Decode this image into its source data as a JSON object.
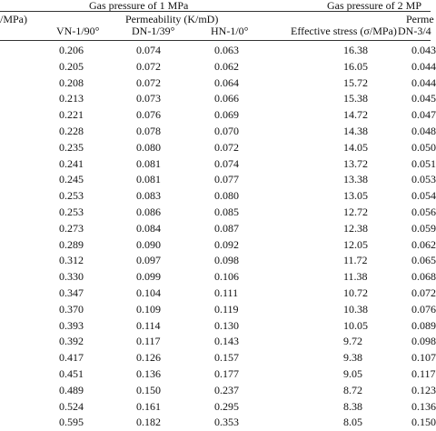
{
  "header": {
    "group1_title": "Gas pressure of 1 MPa",
    "group2_title": "Gas pressure of 2 MP",
    "left_partial_label": "/MPa)",
    "permeability_label": "Permeability (K/mD)",
    "permeability_label_right": "Perme",
    "col_vn": "VN-1/90°",
    "col_dn": "DN-1/39°",
    "col_hn": "HN-1/0°",
    "col_stress": "Effective stress (σ/MPa)",
    "col_dn2": "DN-3/4"
  },
  "rows": [
    {
      "vn": "0.206",
      "dn": "0.074",
      "hn": "0.063",
      "es": "16.38",
      "dn2": "0.043"
    },
    {
      "vn": "0.205",
      "dn": "0.072",
      "hn": "0.062",
      "es": "16.05",
      "dn2": "0.044"
    },
    {
      "vn": "0.208",
      "dn": "0.072",
      "hn": "0.064",
      "es": "15.72",
      "dn2": "0.044"
    },
    {
      "vn": "0.213",
      "dn": "0.073",
      "hn": "0.066",
      "es": "15.38",
      "dn2": "0.045"
    },
    {
      "vn": "0.221",
      "dn": "0.076",
      "hn": "0.069",
      "es": "14.72",
      "dn2": "0.047"
    },
    {
      "vn": "0.228",
      "dn": "0.078",
      "hn": "0.070",
      "es": "14.38",
      "dn2": "0.048"
    },
    {
      "vn": "0.235",
      "dn": "0.080",
      "hn": "0.072",
      "es": "14.05",
      "dn2": "0.050"
    },
    {
      "vn": "0.241",
      "dn": "0.081",
      "hn": "0.074",
      "es": "13.72",
      "dn2": "0.051"
    },
    {
      "vn": "0.245",
      "dn": "0.081",
      "hn": "0.077",
      "es": "13.38",
      "dn2": "0.053"
    },
    {
      "vn": "0.253",
      "dn": "0.083",
      "hn": "0.080",
      "es": "13.05",
      "dn2": "0.054"
    },
    {
      "vn": "0.253",
      "dn": "0.086",
      "hn": "0.085",
      "es": "12.72",
      "dn2": "0.056"
    },
    {
      "vn": "0.273",
      "dn": "0.084",
      "hn": "0.087",
      "es": "12.38",
      "dn2": "0.059"
    },
    {
      "vn": "0.289",
      "dn": "0.090",
      "hn": "0.092",
      "es": "12.05",
      "dn2": "0.062"
    },
    {
      "vn": "0.312",
      "dn": "0.097",
      "hn": "0.098",
      "es": "11.72",
      "dn2": "0.065"
    },
    {
      "vn": "0.330",
      "dn": "0.099",
      "hn": "0.106",
      "es": "11.38",
      "dn2": "0.068"
    },
    {
      "vn": "0.347",
      "dn": "0.104",
      "hn": "0.111",
      "es": "10.72",
      "dn2": "0.072"
    },
    {
      "vn": "0.370",
      "dn": "0.109",
      "hn": "0.119",
      "es": "10.38",
      "dn2": "0.076"
    },
    {
      "vn": "0.393",
      "dn": "0.114",
      "hn": "0.130",
      "es": "10.05",
      "dn2": "0.089"
    },
    {
      "vn": "0.392",
      "dn": "0.117",
      "hn": "0.143",
      "es": "9.72",
      "dn2": "0.098"
    },
    {
      "vn": "0.417",
      "dn": "0.126",
      "hn": "0.157",
      "es": "9.38",
      "dn2": "0.107"
    },
    {
      "vn": "0.451",
      "dn": "0.136",
      "hn": "0.177",
      "es": "9.05",
      "dn2": "0.117"
    },
    {
      "vn": "0.489",
      "dn": "0.150",
      "hn": "0.237",
      "es": "8.72",
      "dn2": "0.123"
    },
    {
      "vn": "0.524",
      "dn": "0.161",
      "hn": "0.295",
      "es": "8.38",
      "dn2": "0.136"
    },
    {
      "vn": "0.595",
      "dn": "0.182",
      "hn": "0.353",
      "es": "8.05",
      "dn2": "0.150"
    }
  ]
}
